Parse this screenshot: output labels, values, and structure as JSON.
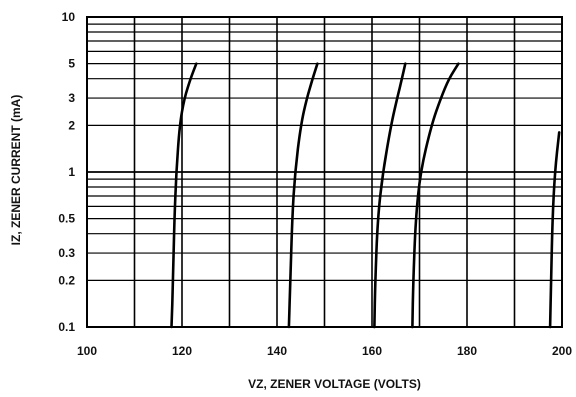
{
  "chart_data": {
    "type": "line",
    "title": "",
    "xlabel": "VZ, ZENER VOLTAGE (VOLTS)",
    "ylabel": "IZ, ZENER CURRENT (mA)",
    "x_scale": "linear",
    "y_scale": "log",
    "xlim": [
      100,
      200
    ],
    "ylim": [
      0.1,
      10
    ],
    "grid": true,
    "x_ticks": [
      100,
      120,
      140,
      160,
      180,
      200
    ],
    "x_tick_labels": [
      "100",
      "120",
      "140",
      "160",
      "180",
      "200"
    ],
    "y_ticks": [
      0.1,
      0.2,
      0.3,
      0.5,
      1,
      2,
      3,
      5,
      10
    ],
    "y_tick_labels": [
      "0.1",
      "0.2",
      "0.3",
      "0.5",
      "1",
      "2",
      "3",
      "5",
      "10"
    ],
    "series": [
      {
        "points": [
          [
            117.8,
            0.1
          ],
          [
            118.1,
            0.2
          ],
          [
            118.4,
            0.5
          ],
          [
            118.8,
            1
          ],
          [
            119.5,
            2
          ],
          [
            120.5,
            3
          ],
          [
            121.8,
            4
          ],
          [
            123.0,
            5
          ]
        ]
      },
      {
        "points": [
          [
            142.5,
            0.1
          ],
          [
            142.8,
            0.2
          ],
          [
            143.2,
            0.5
          ],
          [
            143.8,
            1
          ],
          [
            145.0,
            2
          ],
          [
            146.3,
            3
          ],
          [
            147.5,
            4
          ],
          [
            148.5,
            5
          ]
        ]
      },
      {
        "points": [
          [
            160.5,
            0.1
          ],
          [
            160.7,
            0.2
          ],
          [
            161.2,
            0.5
          ],
          [
            162.3,
            1
          ],
          [
            164.0,
            2
          ],
          [
            165.3,
            3
          ],
          [
            166.3,
            4
          ],
          [
            167.0,
            5
          ]
        ]
      },
      {
        "points": [
          [
            168.5,
            0.1
          ],
          [
            168.7,
            0.2
          ],
          [
            169.2,
            0.5
          ],
          [
            170.2,
            1
          ],
          [
            172.5,
            2
          ],
          [
            174.5,
            3
          ],
          [
            176.2,
            4
          ],
          [
            178.2,
            5
          ]
        ]
      },
      {
        "points": [
          [
            197.5,
            0.1
          ],
          [
            197.7,
            0.2
          ],
          [
            198.0,
            0.5
          ],
          [
            198.5,
            1
          ],
          [
            199.4,
            1.8
          ]
        ]
      }
    ]
  }
}
